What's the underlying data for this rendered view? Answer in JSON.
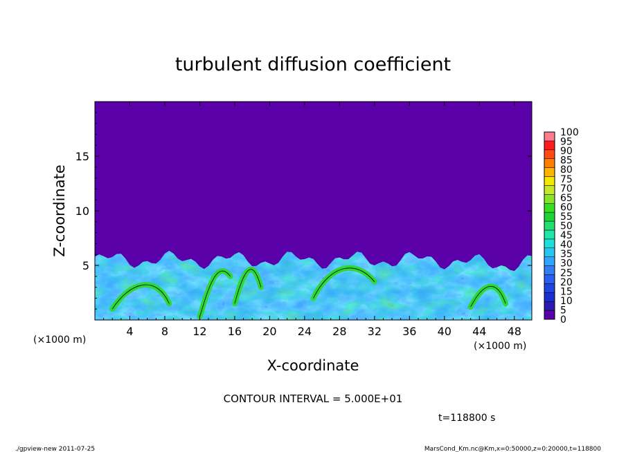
{
  "chart_data": {
    "type": "heatmap",
    "title": "turbulent diffusion coefficient",
    "xlabel": "X-coordinate",
    "ylabel": "Z-coordinate",
    "x_unit_left": "(×1000 m)",
    "x_unit_right": "(×1000 m)",
    "xlim": [
      0,
      50
    ],
    "ylim": [
      0,
      20
    ],
    "x_ticks": [
      4,
      8,
      12,
      16,
      20,
      24,
      28,
      32,
      36,
      40,
      44,
      48
    ],
    "y_ticks": [
      5,
      10,
      15
    ],
    "colorbar": {
      "levels": [
        0,
        5,
        10,
        15,
        20,
        25,
        30,
        35,
        40,
        45,
        50,
        55,
        60,
        65,
        70,
        75,
        80,
        85,
        90,
        95,
        100
      ],
      "colors": [
        "#5a00a8",
        "#2a1ab0",
        "#1a2fd0",
        "#1f45e0",
        "#2860f0",
        "#2f7ef5",
        "#33a4ff",
        "#26c6f0",
        "#1ee0d8",
        "#1fe5a8",
        "#22e070",
        "#1fd235",
        "#35df20",
        "#8ae32a",
        "#c8e62a",
        "#f5e800",
        "#ffb400",
        "#ff7d00",
        "#ff4a10",
        "#ff1c1c",
        "#ff7c8c"
      ]
    },
    "background_value": 0,
    "turbulent_layer_top_approx": 5.5,
    "contour_level_shown": 50
  },
  "contour_interval_label": "CONTOUR INTERVAL = 5.000E+01",
  "time_label": "t=118800 s",
  "footer_left": "./gpview-new  2011-07-25",
  "footer_right": "MarsCond_Km.nc@Km,x=0:50000,z=0:20000,t=118800"
}
